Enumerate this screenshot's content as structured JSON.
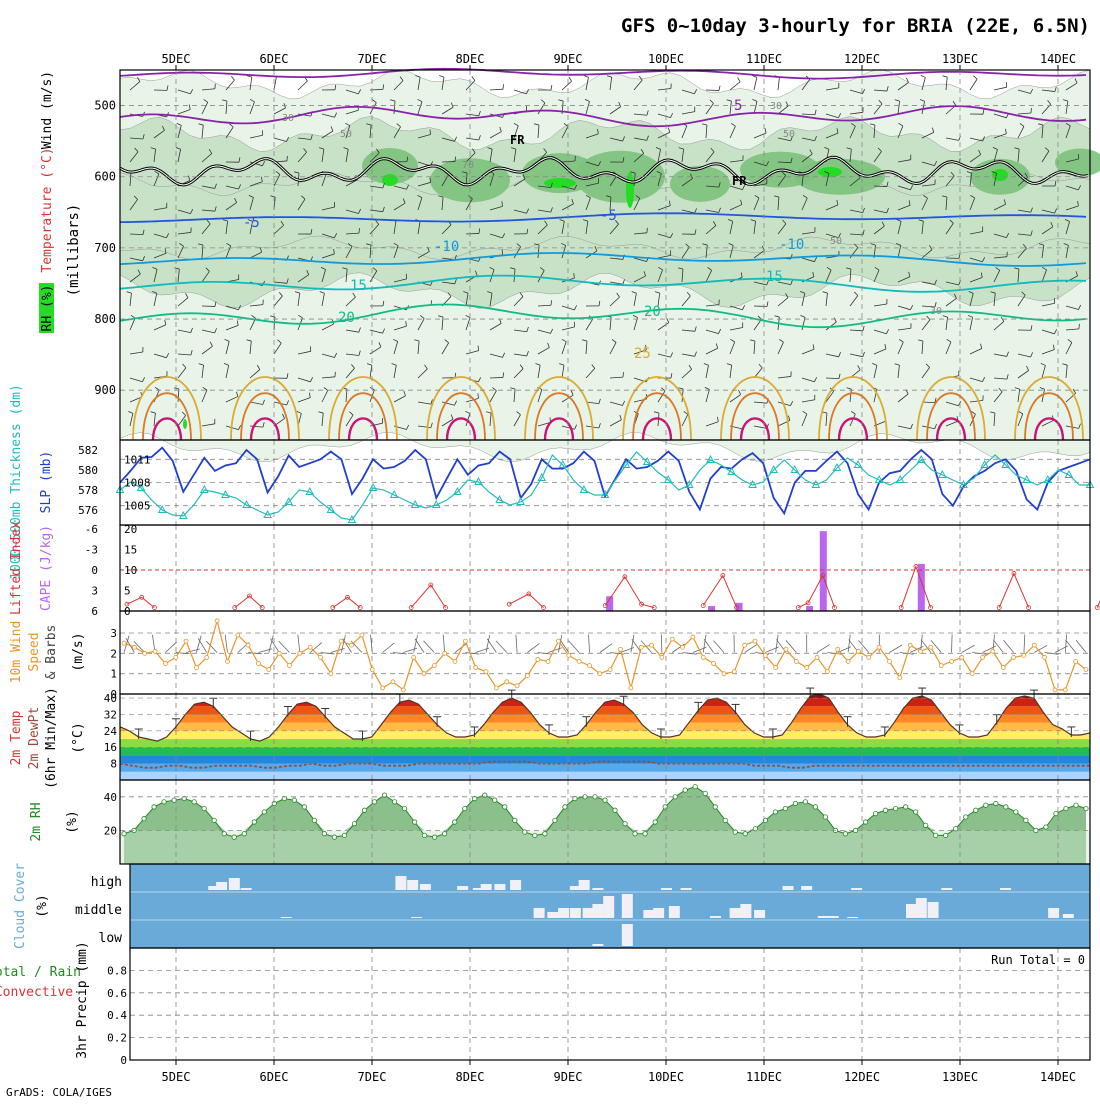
{
  "title": "GFS 0~10day 3-hourly for BRIA (22E, 6.5N)",
  "footer": "GrADS: COLA/IGES",
  "date_labels": [
    "5DEC",
    "6DEC",
    "7DEC",
    "8DEC",
    "9DEC",
    "10DEC",
    "11DEC",
    "12DEC",
    "13DEC",
    "14DEC"
  ],
  "colors": {
    "rh_light": "#e8f4e8",
    "rh_mid": "#c8e2c8",
    "rh_dark": "#7cc27c",
    "rh_bright": "#22dd22",
    "temp_purple": "#8822aa",
    "temp_blue": "#2255dd",
    "temp_lblue": "#1199dd",
    "temp_cyan": "#11bbbb",
    "temp_teal": "#11bb88",
    "temp_orange": "#ddaa33",
    "temp_dorange": "#dd7722",
    "temp_magenta": "#cc1177",
    "freezing": "#000000",
    "slp": "#1f3fcc",
    "thickness": "#22bbbb",
    "li": "#dd3333",
    "cape": "#bb66ee",
    "wind": "#e8962a",
    "dewpt": "#9a4a3a",
    "rh2m": "#228822",
    "cloud": "#6aaad8",
    "cloud_fill": "#f0f0f6"
  },
  "chart_data": [
    {
      "panel": "upper-air",
      "type": "contour",
      "ylabel_parts": [
        "RH (%)",
        "Temperature (°C)",
        "Wind (m/s)"
      ],
      "ylabel2": "(millibars)",
      "y_ticks": [
        "500",
        "600",
        "700",
        "800",
        "900"
      ],
      "ylim": [
        970,
        450
      ],
      "temp_contour_labels": [
        "5",
        "-5",
        "10",
        "-10",
        "15",
        "20",
        "25"
      ],
      "rh_contour_labels": [
        "30",
        "50",
        "70"
      ],
      "freezing_labels": [
        "FR",
        "FR"
      ]
    },
    {
      "panel": "slp-thickness",
      "type": "line",
      "ylabel_left": "1000~500mb Thickness (dm)",
      "ylabel_right": "SLP (mb)",
      "left_ticks": [
        "582",
        "580",
        "578",
        "576"
      ],
      "right_ticks": [
        "1011",
        "1008",
        "1005"
      ],
      "series": [
        {
          "name": "SLP",
          "unit": "mb",
          "ylim": [
            1002.5,
            1013.5
          ],
          "values": [
            1008.0,
            1009.5,
            1011.2,
            1011.3,
            1012.5,
            1010.8,
            1006.8,
            1009.0,
            1011.2,
            1009.5,
            1010.2,
            1010.5,
            1012.2,
            1011.0,
            1006.7,
            1008.8,
            1011.5,
            1010.0,
            1010.5,
            1011.0,
            1012.0,
            1011.0,
            1006.5,
            1008.5,
            1011.0,
            1009.8,
            1010.0,
            1010.8,
            1012.2,
            1011.0,
            1006.0,
            1008.5,
            1011.0,
            1009.0,
            1010.2,
            1010.5,
            1012.0,
            1011.0,
            1006.0,
            1007.8,
            1011.0,
            1009.8,
            1009.8,
            1010.5,
            1012.0,
            1010.8,
            1006.2,
            1008.5,
            1011.0,
            1009.8,
            1010.0,
            1010.8,
            1012.0,
            1010.8,
            1006.8,
            1004.5,
            1008.5,
            1010.0,
            1009.8,
            1011.0,
            1011.8,
            1010.5,
            1006.0,
            1004.0,
            1008.0,
            1009.5,
            1009.5,
            1010.8,
            1012.0,
            1010.5,
            1006.5,
            1004.5,
            1008.0,
            1009.2,
            1009.5,
            1011.0,
            1012.2,
            1011.0,
            1006.5,
            1005.0,
            1007.5,
            1008.8,
            1009.5,
            1010.5,
            1011.0,
            1009.5,
            1005.8,
            1004.5,
            1008.0,
            1009.5,
            1010.0,
            1010.5,
            1011.0
          ]
        },
        {
          "name": "1000-500mb Thickness",
          "unit": "dm",
          "ylim": [
            574.5,
            583.0
          ],
          "values": [
            578.0,
            578.8,
            578.2,
            577.0,
            576.0,
            575.5,
            575.4,
            576.5,
            578.0,
            577.8,
            577.5,
            577.2,
            576.5,
            576.0,
            575.5,
            575.8,
            576.8,
            578.0,
            577.8,
            576.8,
            576.0,
            575.2,
            575.0,
            576.5,
            578.2,
            578.0,
            577.5,
            577.0,
            576.5,
            576.2,
            576.5,
            577.0,
            577.8,
            579.0,
            578.8,
            577.8,
            577.0,
            576.5,
            576.8,
            577.5,
            579.2,
            581.5,
            580.5,
            579.0,
            578.0,
            577.5,
            577.5,
            579.0,
            580.5,
            581.8,
            580.8,
            579.8,
            579.0,
            578.0,
            578.5,
            580.0,
            581.0,
            580.5,
            579.8,
            579.0,
            578.5,
            578.8,
            580.0,
            581.0,
            580.0,
            579.0,
            578.5,
            579.0,
            580.2,
            581.2,
            580.5,
            579.5,
            579.0,
            578.5,
            579.0,
            580.0,
            581.0,
            580.0,
            579.5,
            579.0,
            578.5,
            579.2,
            580.5,
            581.5,
            580.5,
            579.5,
            579.0,
            578.5,
            579.0,
            580.0,
            579.5,
            578.5,
            578.5
          ]
        }
      ]
    },
    {
      "panel": "cape-li",
      "type": "bar",
      "ylabel_left": "Lifted Index",
      "ylabel_right": "CAPE (J/kg)",
      "li_ticks": [
        "-6",
        "-3",
        "0",
        "3",
        "6"
      ],
      "cape_ticks": [
        "20",
        "15",
        "10",
        "5",
        "0"
      ],
      "cape_bars": [
        {
          "x": 4.42,
          "value": 3.6
        },
        {
          "x": 5.46,
          "value": 1.2
        },
        {
          "x": 5.74,
          "value": 2.0
        },
        {
          "x": 6.46,
          "value": 1.2
        },
        {
          "x": 6.6,
          "value": 19.5
        },
        {
          "x": 7.6,
          "value": 11.5
        }
      ],
      "li_segments": [
        [
          [
            -0.5,
            5.0
          ],
          [
            -0.35,
            4.0
          ],
          [
            -0.22,
            5.5
          ]
        ],
        [
          [
            0.6,
            5.5
          ],
          [
            0.75,
            3.8
          ],
          [
            0.88,
            5.5
          ]
        ],
        [
          [
            1.6,
            5.5
          ],
          [
            1.75,
            4.0
          ],
          [
            1.88,
            5.5
          ]
        ],
        [
          [
            2.4,
            5.5
          ],
          [
            2.6,
            2.2
          ],
          [
            2.75,
            5.5
          ]
        ],
        [
          [
            3.4,
            5.0
          ],
          [
            3.6,
            3.5
          ],
          [
            3.75,
            5.5
          ]
        ],
        [
          [
            4.38,
            5.2
          ],
          [
            4.58,
            1.0
          ],
          [
            4.75,
            5.0
          ],
          [
            4.88,
            5.5
          ]
        ],
        [
          [
            5.38,
            5.2
          ],
          [
            5.58,
            0.8
          ],
          [
            5.72,
            5.5
          ]
        ],
        [
          [
            6.35,
            5.5
          ],
          [
            6.45,
            4.8
          ],
          [
            6.6,
            0.8
          ],
          [
            6.72,
            5.5
          ]
        ],
        [
          [
            7.4,
            5.5
          ],
          [
            7.55,
            -0.5
          ],
          [
            7.7,
            5.5
          ]
        ],
        [
          [
            8.4,
            5.5
          ],
          [
            8.55,
            0.5
          ],
          [
            8.7,
            5.5
          ]
        ],
        [
          [
            9.4,
            5.5
          ],
          [
            9.55,
            0.8
          ],
          [
            9.72,
            5.5
          ]
        ]
      ]
    },
    {
      "panel": "wind10m",
      "type": "line",
      "ylabel_parts": [
        "10m Wind",
        "Speed",
        "& Barbs",
        "(m/s)"
      ],
      "y_ticks": [
        "3",
        "2",
        "1",
        "0"
      ],
      "ylim": [
        0,
        4
      ],
      "values": [
        2.5,
        2.3,
        2.0,
        2.1,
        1.5,
        1.8,
        2.6,
        1.3,
        1.8,
        3.6,
        1.6,
        2.9,
        2.4,
        1.5,
        1.2,
        2.0,
        1.4,
        2.0,
        2.3,
        1.8,
        1.0,
        2.6,
        2.4,
        2.9,
        1.2,
        0.3,
        0.6,
        0.2,
        1.8,
        1.0,
        1.4,
        2.0,
        1.6,
        2.6,
        1.3,
        1.1,
        0.3,
        0.6,
        0.4,
        0.9,
        1.7,
        1.6,
        2.6,
        1.9,
        1.6,
        1.4,
        1.0,
        1.2,
        2.2,
        0.3,
        2.3,
        2.4,
        1.8,
        2.7,
        2.3,
        2.8,
        1.8,
        1.5,
        1.0,
        1.1,
        2.4,
        2.6,
        1.9,
        1.3,
        2.2,
        1.6,
        1.3,
        1.8,
        1.1,
        2.2,
        1.6,
        2.1,
        1.8,
        2.3,
        1.6,
        0.8,
        2.4,
        2.1,
        2.3,
        1.4,
        1.6,
        1.8,
        1.0,
        1.8,
        2.1,
        1.3,
        1.8,
        1.9,
        2.4,
        1.8,
        0.2,
        0.2,
        1.6,
        1.2
      ]
    },
    {
      "panel": "temp2m",
      "type": "area",
      "ylabel_parts": [
        "2m Temp",
        "2m DewPt",
        "(6hr Min/Max)",
        "(°C)"
      ],
      "y_ticks": [
        "40",
        "32",
        "24",
        "16",
        "8"
      ],
      "ylim": [
        0,
        42
      ],
      "temp": [
        26,
        24,
        21,
        20,
        19,
        21,
        26,
        32,
        37,
        38,
        36,
        31,
        26,
        23,
        20,
        19,
        21,
        26,
        32,
        37,
        38,
        36,
        31,
        26,
        23,
        20,
        20,
        21,
        27,
        33,
        38,
        39,
        37,
        32,
        27,
        23,
        21,
        21,
        22,
        27,
        33,
        38,
        40,
        38,
        33,
        27,
        23,
        21,
        21,
        22,
        27,
        33,
        38,
        39,
        37,
        33,
        27,
        23,
        21,
        21,
        22,
        28,
        34,
        39,
        40,
        38,
        33,
        27,
        23,
        21,
        21,
        22,
        28,
        35,
        41,
        42,
        40,
        33,
        27,
        23,
        21,
        21,
        22,
        28,
        35,
        40,
        41,
        39,
        33,
        27,
        23,
        21,
        21,
        22,
        28,
        35,
        40,
        41,
        40,
        33,
        27,
        25,
        22,
        22,
        23
      ],
      "dewpt": [
        8,
        7,
        6,
        6,
        7,
        7,
        6,
        6,
        7,
        7,
        7,
        7,
        6,
        6,
        7,
        7,
        8,
        7,
        7,
        8,
        8,
        8,
        7,
        7,
        7,
        8,
        8,
        8,
        8,
        8,
        8,
        9,
        9,
        9,
        9,
        8,
        8,
        8,
        8,
        8,
        9,
        9,
        9,
        9,
        9,
        8,
        8,
        8,
        8,
        8,
        8,
        8,
        8,
        7,
        7,
        7,
        6,
        6,
        7,
        7,
        7,
        7,
        7,
        7,
        7,
        7,
        7,
        7,
        7,
        7,
        7,
        7,
        7,
        7,
        7,
        7,
        7,
        7,
        7,
        7,
        7,
        7
      ]
    },
    {
      "panel": "rh2m",
      "type": "area",
      "ylabel_parts": [
        "2m RH",
        "(%)"
      ],
      "y_ticks": [
        "40",
        "20"
      ],
      "ylim": [
        0,
        50
      ],
      "values": [
        18,
        20,
        27,
        34,
        37,
        38,
        39,
        37,
        33,
        26,
        18,
        16,
        18,
        25,
        31,
        36,
        39,
        38,
        34,
        26,
        18,
        16,
        17,
        24,
        32,
        37,
        41,
        37,
        33,
        25,
        17,
        16,
        18,
        25,
        33,
        39,
        41,
        38,
        34,
        26,
        19,
        17,
        18,
        26,
        34,
        39,
        40,
        40,
        38,
        32,
        24,
        18,
        18,
        25,
        34,
        40,
        44,
        46,
        42,
        34,
        26,
        19,
        18,
        21,
        26,
        31,
        33,
        36,
        37,
        34,
        28,
        20,
        18,
        20,
        25,
        30,
        32,
        33,
        34,
        31,
        23,
        17,
        17,
        21,
        28,
        32,
        35,
        36,
        34,
        31,
        26,
        20,
        22,
        30,
        33,
        35,
        33
      ]
    },
    {
      "panel": "cloud",
      "type": "bar",
      "ylabel": "Cloud Cover (%)",
      "levels": [
        "high",
        "middle",
        "low"
      ],
      "high_bars": [
        [
          0.38,
          4
        ],
        [
          0.46,
          8
        ],
        [
          0.59,
          12
        ],
        [
          0.71,
          2
        ],
        [
          2.29,
          14
        ],
        [
          2.41,
          10
        ],
        [
          2.54,
          6
        ],
        [
          2.92,
          4
        ],
        [
          3.08,
          2
        ],
        [
          3.16,
          6
        ],
        [
          3.3,
          6
        ],
        [
          3.46,
          10
        ],
        [
          4.07,
          4
        ],
        [
          4.16,
          10
        ],
        [
          4.3,
          2
        ],
        [
          5.0,
          2
        ],
        [
          5.2,
          2
        ],
        [
          6.24,
          4
        ],
        [
          6.43,
          4
        ],
        [
          6.94,
          2
        ],
        [
          7.86,
          2
        ],
        [
          8.46,
          2
        ],
        [
          9.96,
          2
        ],
        [
          10.18,
          4
        ],
        [
          10.29,
          10
        ]
      ],
      "middle_bars": [
        [
          1.12,
          1
        ],
        [
          2.45,
          1
        ],
        [
          3.7,
          10
        ],
        [
          3.84,
          6
        ],
        [
          3.95,
          10
        ],
        [
          4.07,
          10
        ],
        [
          4.2,
          10
        ],
        [
          4.3,
          14
        ],
        [
          4.41,
          22
        ],
        [
          4.6,
          24
        ],
        [
          4.82,
          8
        ],
        [
          4.92,
          10
        ],
        [
          5.08,
          12
        ],
        [
          5.5,
          2
        ],
        [
          5.7,
          10
        ],
        [
          5.81,
          14
        ],
        [
          5.95,
          8
        ],
        [
          6.6,
          2
        ],
        [
          6.7,
          2
        ],
        [
          6.9,
          1
        ],
        [
          7.5,
          14
        ],
        [
          7.6,
          20
        ],
        [
          7.72,
          16
        ],
        [
          8.95,
          10
        ],
        [
          9.1,
          4
        ],
        [
          10.04,
          14
        ],
        [
          10.22,
          4
        ]
      ],
      "low_bars": [
        [
          4.3,
          2
        ],
        [
          4.6,
          22
        ]
      ]
    },
    {
      "panel": "precip",
      "type": "bar",
      "ylabel": "3hr Precip (mm)",
      "ylabel_side": [
        "Total / Rain",
        "Convective"
      ],
      "run_total": "Run Total = 0",
      "y_ticks": [
        "0.8",
        "0.6",
        "0.4",
        "0.2",
        "0"
      ],
      "ylim": [
        0,
        1
      ],
      "values": []
    }
  ]
}
